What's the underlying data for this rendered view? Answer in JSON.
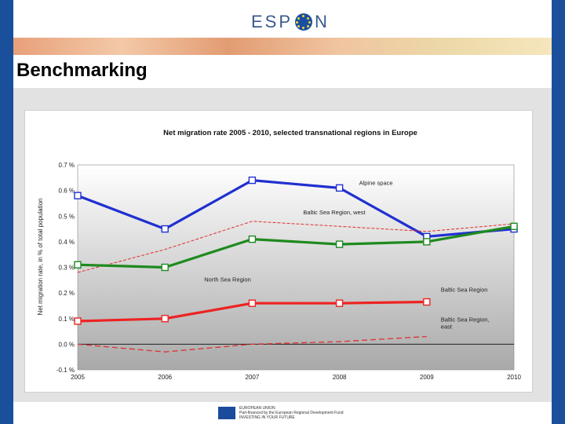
{
  "header": {
    "logo_text_left": "ESP",
    "logo_text_right": "N"
  },
  "page": {
    "title": "Benchmarking"
  },
  "footer": {
    "eu_line1": "EUROPEAN UNION",
    "eu_line2": "Part-financed by the European Regional Development Fund",
    "eu_line3": "INVESTING IN YOUR FUTURE"
  },
  "colors": {
    "blue": "#2030d0",
    "green": "#1e8a1e",
    "red": "#ee2222",
    "background_brand": "#1a4f9c"
  },
  "chart_data": {
    "type": "line",
    "title": "Net migration rate 2005 - 2010, selected transnational regions in Europe",
    "ylabel": "Net migration rate, in % of total population",
    "xlabel": "",
    "x": [
      2005,
      2006,
      2007,
      2008,
      2009,
      2010
    ],
    "x_tick_labels": [
      "2005",
      "2006",
      "2007",
      "2008",
      "2009",
      "2010"
    ],
    "ylim": [
      -0.1,
      0.7
    ],
    "y_ticks": [
      -0.1,
      0.0,
      0.1,
      0.2,
      0.3,
      0.4,
      0.5,
      0.6,
      0.7
    ],
    "y_tick_labels": [
      "-0.1 %",
      "0.0 %",
      "0.1 %",
      "0.2 %",
      "0.3 %",
      "0.4 %",
      "0.5 %",
      "0.6 %",
      "0.7 %"
    ],
    "series": [
      {
        "name": "Alpine space",
        "style": "solid",
        "color": "#2030d0",
        "markers": true,
        "values": [
          0.58,
          0.45,
          0.64,
          0.61,
          0.42,
          0.45
        ]
      },
      {
        "name": "Baltic Sea Region, west",
        "style": "dashed-thin",
        "color": "#e03030",
        "markers": false,
        "values": [
          0.28,
          0.37,
          0.48,
          0.46,
          0.44,
          0.47
        ]
      },
      {
        "name": "North Sea Region",
        "style": "solid",
        "color": "#1e8a1e",
        "markers": true,
        "values": [
          0.31,
          0.3,
          0.41,
          0.39,
          0.4,
          0.46
        ]
      },
      {
        "name": "Baltic Sea Region",
        "style": "solid",
        "color": "#ee2222",
        "markers": true,
        "values": [
          0.09,
          0.1,
          0.16,
          0.16,
          0.165,
          null
        ]
      },
      {
        "name": "Baltic Sea Region, east",
        "style": "dashed",
        "color": "#e03030",
        "markers": false,
        "values": [
          0.0,
          -0.03,
          0.0,
          0.01,
          0.03,
          null
        ]
      }
    ],
    "annotations": [
      {
        "text": "Alpine space",
        "series": 0
      },
      {
        "text": "Baltic Sea Region, west",
        "series": 1
      },
      {
        "text": "North Sea Region",
        "series": 2
      },
      {
        "text": "Baltic Sea Region",
        "series": 3
      },
      {
        "text": "Baltic Sea Region, east",
        "series": 4
      }
    ],
    "grid": false,
    "background": "gradient-white-to-gray"
  }
}
